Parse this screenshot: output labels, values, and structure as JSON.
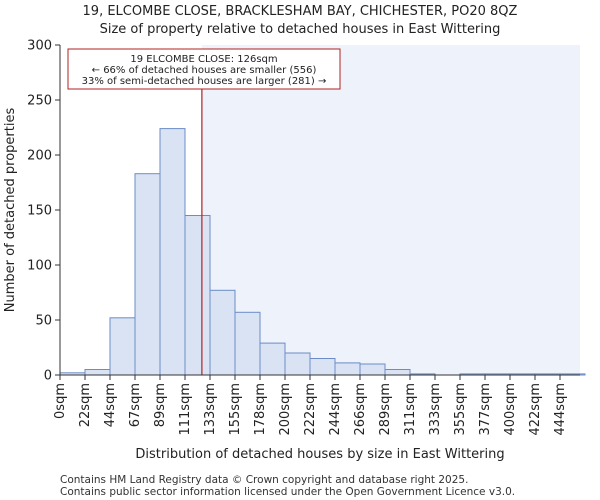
{
  "chart_data": {
    "type": "bar",
    "title": "19, ELCOMBE CLOSE, BRACKLESHAM BAY, CHICHESTER, PO20 8QZ",
    "subtitle": "Size of property relative to detached houses in East Wittering",
    "xlabel": "Distribution of detached houses by size in East Wittering",
    "ylabel": "Number of detached properties",
    "ylim": [
      0,
      300
    ],
    "yticks": [
      0,
      50,
      100,
      150,
      200,
      250,
      300
    ],
    "categories": [
      "0sqm",
      "22sqm",
      "44sqm",
      "67sqm",
      "89sqm",
      "111sqm",
      "133sqm",
      "155sqm",
      "178sqm",
      "200sqm",
      "222sqm",
      "244sqm",
      "266sqm",
      "289sqm",
      "311sqm",
      "333sqm",
      "355sqm",
      "377sqm",
      "400sqm",
      "422sqm",
      "444sqm"
    ],
    "values": [
      2,
      5,
      52,
      183,
      224,
      145,
      77,
      57,
      29,
      20,
      15,
      11,
      10,
      5,
      1,
      0,
      1,
      1,
      1,
      1,
      1
    ],
    "marker": {
      "label": "19 ELCOMBE CLOSE: 126sqm",
      "value_sqm": 126
    },
    "annotation_lines": [
      "19 ELCOMBE CLOSE: 126sqm",
      "← 66% of detached houses are smaller (556)",
      "33% of semi-detached houses are larger (281) →"
    ],
    "colors": {
      "bar_fill": "#dae3f4",
      "bar_edge": "#6b8cc7",
      "marker": "#b22222",
      "highlight_region": "#eef2fa"
    }
  },
  "footer": {
    "line1": "Contains HM Land Registry data © Crown copyright and database right 2025.",
    "line2": "Contains public sector information licensed under the Open Government Licence v3.0."
  }
}
